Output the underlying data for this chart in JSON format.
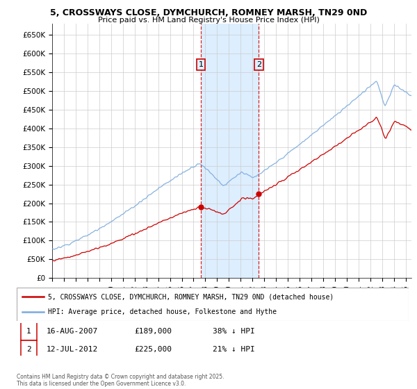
{
  "title1": "5, CROSSWAYS CLOSE, DYMCHURCH, ROMNEY MARSH, TN29 0ND",
  "title2": "Price paid vs. HM Land Registry's House Price Index (HPI)",
  "bg_color": "#ffffff",
  "grid_color": "#cccccc",
  "line1_color": "#cc0000",
  "line2_color": "#7aaadd",
  "shade_color": "#ddeeff",
  "ylim": [
    0,
    680000
  ],
  "yticks": [
    0,
    50000,
    100000,
    150000,
    200000,
    250000,
    300000,
    350000,
    400000,
    450000,
    500000,
    550000,
    600000,
    650000
  ],
  "ytick_labels": [
    "£0",
    "£50K",
    "£100K",
    "£150K",
    "£200K",
    "£250K",
    "£300K",
    "£350K",
    "£400K",
    "£450K",
    "£500K",
    "£550K",
    "£600K",
    "£650K"
  ],
  "sale1_year": 2007.625,
  "sale1_price": 189000,
  "sale1_label": "1",
  "sale2_year": 2012.533,
  "sale2_price": 225000,
  "sale2_label": "2",
  "legend_line1": "5, CROSSWAYS CLOSE, DYMCHURCH, ROMNEY MARSH, TN29 0ND (detached house)",
  "legend_line2": "HPI: Average price, detached house, Folkestone and Hythe",
  "note1_label": "1",
  "note1_date": "16-AUG-2007",
  "note1_price": "£189,000",
  "note1_hpi": "38% ↓ HPI",
  "note2_label": "2",
  "note2_date": "12-JUL-2012",
  "note2_price": "£225,000",
  "note2_hpi": "21% ↓ HPI",
  "footer": "Contains HM Land Registry data © Crown copyright and database right 2025.\nThis data is licensed under the Open Government Licence v3.0.",
  "shade_x1": 2007.625,
  "shade_x2": 2012.533,
  "xmin": 1995.0,
  "xmax": 2025.5
}
